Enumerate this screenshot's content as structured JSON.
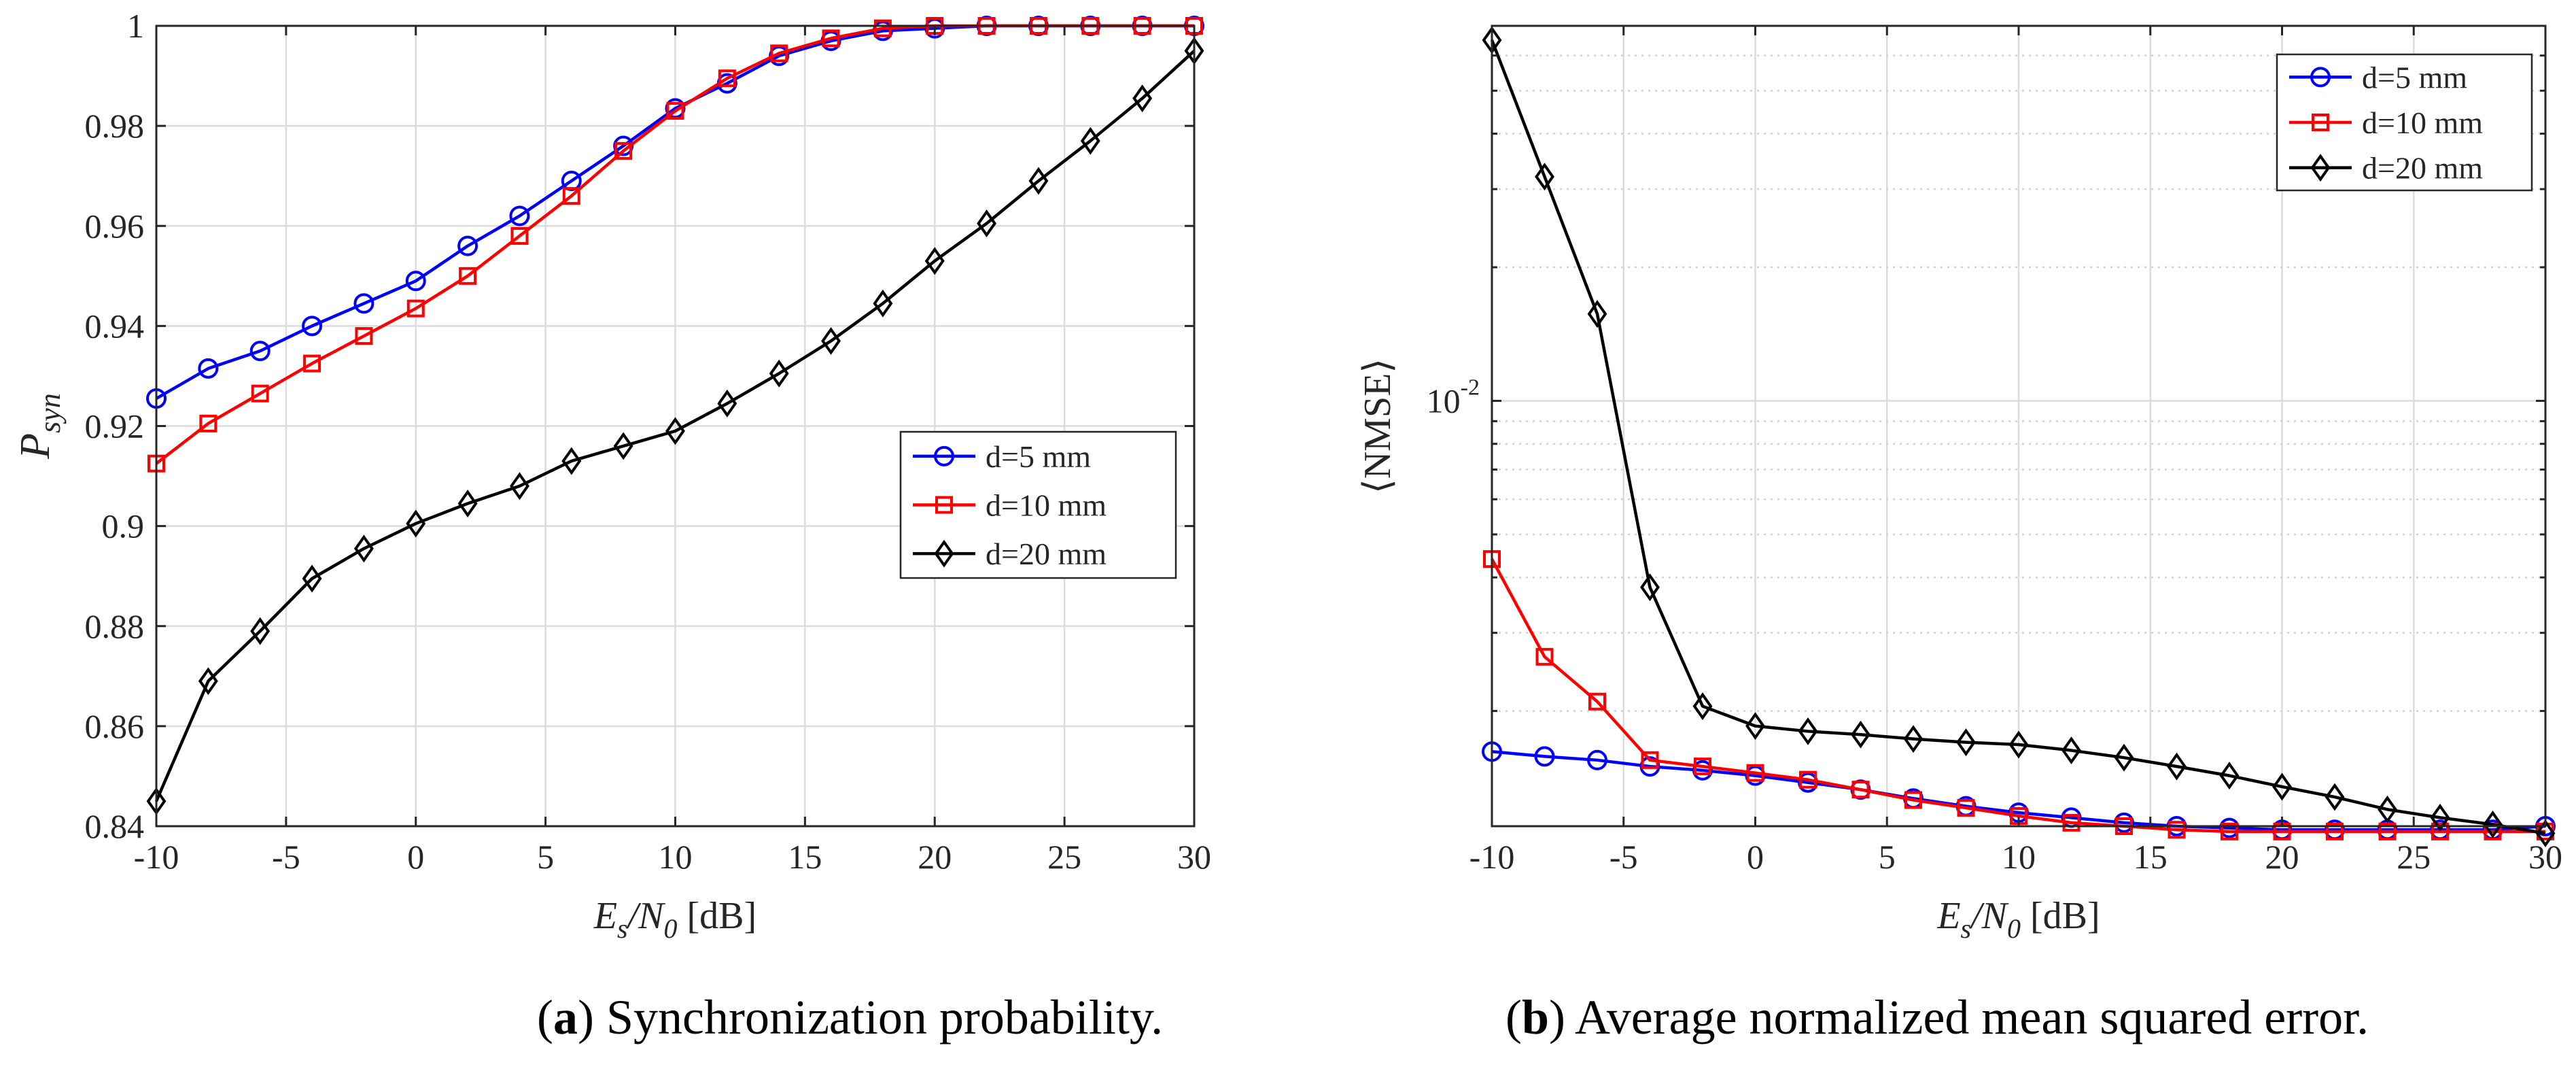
{
  "chart_data": [
    {
      "id": "a",
      "type": "line",
      "title": "",
      "caption_label": "a",
      "caption_text": "Synchronization probability.",
      "xlabel": "Es/N0 [dB]",
      "xlabel_parts": {
        "e": "E",
        "s": "s",
        "slash": "/N",
        "zero": "0",
        "unit": " [dB]"
      },
      "ylabel": "P_syn",
      "ylabel_parts": {
        "p": "P",
        "sub": "syn"
      },
      "xlim": [
        -10,
        30
      ],
      "ylim": [
        0.84,
        1.0
      ],
      "xticks": [
        -10,
        -5,
        0,
        5,
        10,
        15,
        20,
        25,
        30
      ],
      "yticks": [
        0.84,
        0.86,
        0.88,
        0.9,
        0.92,
        0.94,
        0.96,
        0.98,
        1.0
      ],
      "xtick_labels": [
        "-10",
        "-5",
        "0",
        "5",
        "10",
        "15",
        "20",
        "25",
        "30"
      ],
      "ytick_labels": [
        "0.84",
        "0.86",
        "0.88",
        "0.9",
        "0.92",
        "0.94",
        "0.96",
        "0.98",
        "1"
      ],
      "grid": true,
      "legend_position": "center-right",
      "x": [
        -10,
        -8,
        -6,
        -4,
        -2,
        0,
        2,
        4,
        6,
        8,
        10,
        12,
        14,
        16,
        18,
        20,
        22,
        24,
        26,
        28,
        30
      ],
      "series": [
        {
          "name": "d=5 mm",
          "color": "#0000ff",
          "marker": "circle",
          "values": [
            0.9255,
            0.9315,
            0.935,
            0.94,
            0.9445,
            0.949,
            0.956,
            0.962,
            0.969,
            0.976,
            0.9835,
            0.9885,
            0.994,
            0.997,
            0.999,
            0.9995,
            1.0,
            1.0,
            1.0,
            1.0,
            1.0
          ]
        },
        {
          "name": "d=10 mm",
          "color": "#ff0000",
          "marker": "square",
          "values": [
            0.9125,
            0.9205,
            0.9265,
            0.9325,
            0.938,
            0.9435,
            0.95,
            0.958,
            0.966,
            0.975,
            0.983,
            0.9895,
            0.9945,
            0.9975,
            0.9995,
            1.0,
            1.0,
            1.0,
            1.0,
            1.0,
            1.0
          ]
        },
        {
          "name": "d=20 mm",
          "color": "#000000",
          "marker": "diamond",
          "values": [
            0.845,
            0.869,
            0.879,
            0.8895,
            0.8955,
            0.9005,
            0.9045,
            0.908,
            0.913,
            0.916,
            0.919,
            0.9245,
            0.9305,
            0.937,
            0.9445,
            0.953,
            0.9605,
            0.969,
            0.977,
            0.9855,
            0.995
          ]
        }
      ]
    },
    {
      "id": "b",
      "type": "line",
      "title": "",
      "caption_label": "b",
      "caption_text": "Average normalized mean squared error.",
      "xlabel": "Es/N0 [dB]",
      "xlabel_parts": {
        "e": "E",
        "s": "s",
        "slash": "/N",
        "zero": "0",
        "unit": " [dB]"
      },
      "ylabel": "⟨NMSE⟩",
      "yscale": "log",
      "xlim": [
        -10,
        30
      ],
      "ylim": [
        0.0011,
        0.07
      ],
      "xticks": [
        -10,
        -5,
        0,
        5,
        10,
        15,
        20,
        25,
        30
      ],
      "xtick_labels": [
        "-10",
        "-5",
        "0",
        "5",
        "10",
        "15",
        "20",
        "25",
        "30"
      ],
      "ytick_label": {
        "base": "10",
        "exp": "-2",
        "value": 0.01
      },
      "grid": true,
      "legend_position": "top-right",
      "x": [
        -10,
        -8,
        -6,
        -4,
        -2,
        0,
        2,
        4,
        6,
        8,
        10,
        12,
        14,
        16,
        18,
        20,
        22,
        24,
        26,
        28,
        30
      ],
      "series": [
        {
          "name": "d=5 mm",
          "color": "#0000ff",
          "marker": "circle",
          "values": [
            0.00162,
            0.00158,
            0.00155,
            0.0015,
            0.00147,
            0.00143,
            0.00138,
            0.00133,
            0.00127,
            0.00122,
            0.00118,
            0.00115,
            0.00112,
            0.0011,
            0.00109,
            0.00108,
            0.00108,
            0.00108,
            0.00108,
            0.00108,
            0.0011
          ]
        },
        {
          "name": "d=10 mm",
          "color": "#ff0000",
          "marker": "square",
          "values": [
            0.0044,
            0.00265,
            0.0021,
            0.00155,
            0.0015,
            0.00145,
            0.0014,
            0.00133,
            0.00126,
            0.00121,
            0.00116,
            0.00112,
            0.0011,
            0.00108,
            0.00107,
            0.00107,
            0.00107,
            0.00107,
            0.00107,
            0.00107,
            0.00107
          ]
        },
        {
          "name": "d=20 mm",
          "color": "#000000",
          "marker": "diamond",
          "values": [
            0.065,
            0.032,
            0.0157,
            0.0038,
            0.00205,
            0.00185,
            0.0018,
            0.00177,
            0.00173,
            0.0017,
            0.00168,
            0.00163,
            0.00157,
            0.0015,
            0.00143,
            0.00135,
            0.00128,
            0.0012,
            0.00115,
            0.00111,
            0.00106
          ]
        }
      ]
    }
  ]
}
